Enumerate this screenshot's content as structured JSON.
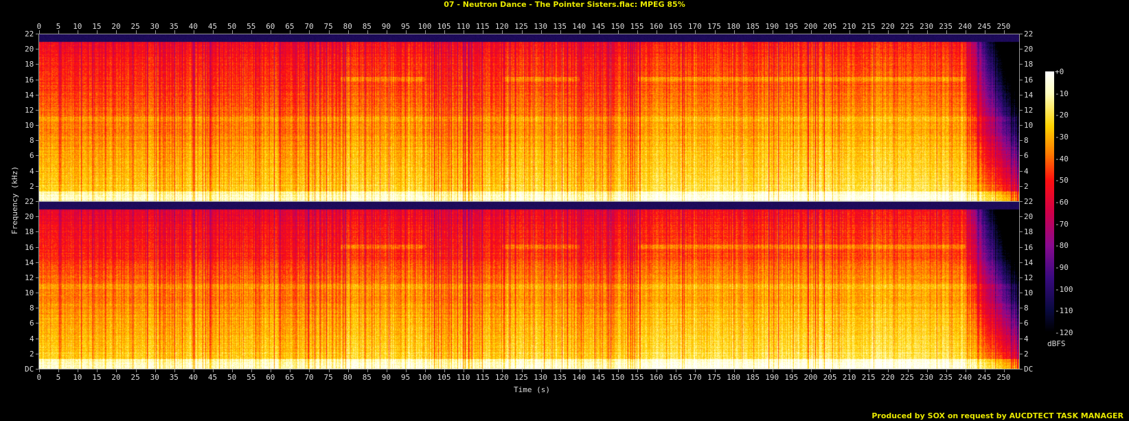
{
  "title": "07 - Neutron Dance - The Pointer Sisters.flac: MPEG 85%",
  "footer": "Produced by SOX on request by AUCDTECT TASK MANAGER",
  "chart_data": {
    "type": "heatmap",
    "title": "07 - Neutron Dance - The Pointer Sisters.flac: MPEG 85%",
    "xlabel": "Time (s)",
    "ylabel": "Frequency (kHz)",
    "channels": 2,
    "xlim": [
      0,
      254
    ],
    "ylim": [
      0,
      22
    ],
    "x_ticks": [
      0,
      5,
      10,
      15,
      20,
      25,
      30,
      35,
      40,
      45,
      50,
      55,
      60,
      65,
      70,
      75,
      80,
      85,
      90,
      95,
      100,
      105,
      110,
      115,
      120,
      125,
      130,
      135,
      140,
      145,
      150,
      155,
      160,
      165,
      170,
      175,
      180,
      185,
      190,
      195,
      200,
      205,
      210,
      215,
      220,
      225,
      230,
      235,
      240,
      245,
      250
    ],
    "y_ticks_upper": [
      "22",
      "20",
      "18",
      "16",
      "14",
      "12",
      "10",
      "8",
      "6",
      "4",
      "2"
    ],
    "y_ticks_lower": [
      "22",
      "20",
      "18",
      "16",
      "14",
      "12",
      "10",
      "8",
      "6",
      "4",
      "2",
      "DC"
    ],
    "lowpass_cutoff_khz": 21,
    "fade_out_start_s": 240,
    "colorbar": {
      "label": "dBFS",
      "range": [
        -120,
        0
      ],
      "ticks": [
        "+0",
        "-10",
        "-20",
        "-30",
        "-40",
        "-50",
        "-60",
        "-70",
        "-80",
        "-90",
        "-100",
        "-110",
        "-120"
      ],
      "colors": [
        "#000000",
        "#0a0a40",
        "#3a0a80",
        "#8a0a90",
        "#d0004a",
        "#ff1010",
        "#ff7a00",
        "#ffd400",
        "#ffffc0",
        "#ffffff"
      ]
    }
  }
}
